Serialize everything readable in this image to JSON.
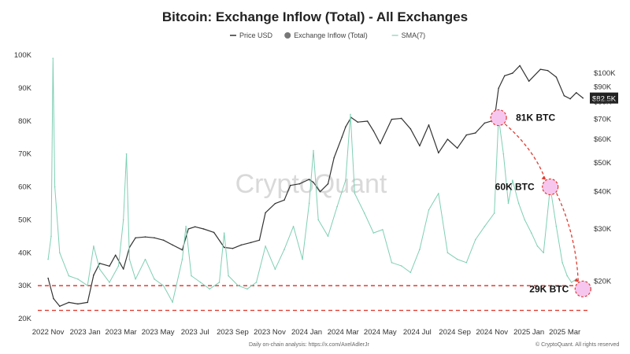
{
  "chart_data": {
    "type": "line",
    "title": "Bitcoin: Exchange Inflow (Total) - All Exchanges",
    "legend": [
      {
        "name": "Price USD",
        "color": "#333333",
        "marker": "line"
      },
      {
        "name": "Exchange Inflow (Total)",
        "color": "#777777",
        "marker": "dot"
      },
      {
        "name": "SMA(7)",
        "color": "#9fd8c4",
        "marker": "line"
      }
    ],
    "x_tick_labels": [
      "2022 Nov",
      "2023 Jan",
      "2023 Mar",
      "2023 May",
      "2023 Jul",
      "2023 Sep",
      "2023 Nov",
      "2024 Jan",
      "2024 Mar",
      "2024 May",
      "2024 Jul",
      "2024 Sep",
      "2024 Nov",
      "2025 Jan",
      "2025 Mar"
    ],
    "left_axis": {
      "ticks": [
        "100K",
        "90K",
        "80K",
        "70K",
        "60K",
        "50K",
        "40K",
        "30K",
        "20K"
      ],
      "ylim": [
        20000,
        100000
      ]
    },
    "right_axis": {
      "ticks": [
        "$100K",
        "$90K",
        "$80K",
        "$70K",
        "$60K",
        "$50K",
        "$40K",
        "$30K",
        "$20K"
      ],
      "log": true,
      "ylim": [
        15000,
        115000
      ]
    },
    "last_price_label": "$82.5K",
    "watermark": "CryptoQuant",
    "series": [
      {
        "name": "Price USD",
        "axis": "right",
        "color": "#333333",
        "x": [
          "2022-11-01",
          "2022-11-10",
          "2022-11-20",
          "2022-12-05",
          "2022-12-20",
          "2023-01-05",
          "2023-01-15",
          "2023-01-25",
          "2023-02-10",
          "2023-02-20",
          "2023-03-05",
          "2023-03-15",
          "2023-03-25",
          "2023-04-10",
          "2023-04-25",
          "2023-05-10",
          "2023-05-25",
          "2023-06-10",
          "2023-06-20",
          "2023-07-01",
          "2023-07-15",
          "2023-08-01",
          "2023-08-18",
          "2023-09-01",
          "2023-09-15",
          "2023-10-01",
          "2023-10-15",
          "2023-10-25",
          "2023-11-10",
          "2023-11-25",
          "2023-12-05",
          "2023-12-20",
          "2024-01-05",
          "2024-01-12",
          "2024-01-23",
          "2024-02-05",
          "2024-02-15",
          "2024-02-28",
          "2024-03-05",
          "2024-03-14",
          "2024-03-25",
          "2024-04-10",
          "2024-04-20",
          "2024-05-01",
          "2024-05-20",
          "2024-06-05",
          "2024-06-20",
          "2024-07-05",
          "2024-07-20",
          "2024-08-05",
          "2024-08-20",
          "2024-09-05",
          "2024-09-20",
          "2024-10-05",
          "2024-10-20",
          "2024-11-05",
          "2024-11-12",
          "2024-11-22",
          "2024-12-05",
          "2024-12-17",
          "2025-01-01",
          "2025-01-20",
          "2025-02-01",
          "2025-02-15",
          "2025-02-28",
          "2025-03-10",
          "2025-03-20",
          "2025-03-31"
        ],
        "values": [
          20500,
          17500,
          16500,
          17000,
          16800,
          17000,
          21000,
          23000,
          22500,
          24500,
          22000,
          26000,
          28000,
          28200,
          28000,
          27500,
          26500,
          25500,
          30000,
          30500,
          30000,
          29200,
          26000,
          25800,
          26500,
          27000,
          27500,
          34000,
          36500,
          37500,
          42000,
          42500,
          44000,
          43000,
          40000,
          42500,
          52000,
          61000,
          66000,
          71000,
          68500,
          69000,
          64000,
          58000,
          70000,
          70500,
          65000,
          57000,
          67000,
          54000,
          60000,
          56000,
          62000,
          63000,
          68000,
          69500,
          89000,
          98000,
          100000,
          106000,
          94000,
          103000,
          102000,
          97000,
          84000,
          82000,
          86000,
          82500
        ]
      },
      {
        "name": "Exchange Inflow (Total)",
        "axis": "left",
        "color": "#7fcfb4",
        "x": [
          "2022-11-01",
          "2022-11-06",
          "2022-11-09",
          "2022-11-12",
          "2022-11-20",
          "2022-12-05",
          "2022-12-20",
          "2023-01-05",
          "2023-01-15",
          "2023-01-25",
          "2023-02-10",
          "2023-02-25",
          "2023-03-05",
          "2023-03-10",
          "2023-03-15",
          "2023-03-25",
          "2023-04-10",
          "2023-04-25",
          "2023-05-10",
          "2023-05-25",
          "2023-06-10",
          "2023-06-16",
          "2023-06-25",
          "2023-07-10",
          "2023-07-25",
          "2023-08-10",
          "2023-08-18",
          "2023-08-25",
          "2023-09-10",
          "2023-09-25",
          "2023-10-10",
          "2023-10-25",
          "2023-11-10",
          "2023-11-25",
          "2023-12-10",
          "2023-12-25",
          "2024-01-05",
          "2024-01-12",
          "2024-01-20",
          "2024-02-05",
          "2024-02-20",
          "2024-03-05",
          "2024-03-13",
          "2024-03-20",
          "2024-04-05",
          "2024-04-20",
          "2024-05-05",
          "2024-05-20",
          "2024-06-05",
          "2024-06-20",
          "2024-07-05",
          "2024-07-20",
          "2024-08-05",
          "2024-08-20",
          "2024-09-05",
          "2024-09-20",
          "2024-10-05",
          "2024-10-20",
          "2024-11-05",
          "2024-11-12",
          "2024-11-20",
          "2024-11-28",
          "2024-12-05",
          "2024-12-15",
          "2024-12-25",
          "2025-01-05",
          "2025-01-15",
          "2025-01-25",
          "2025-02-05",
          "2025-02-15",
          "2025-02-25",
          "2025-03-05",
          "2025-03-12",
          "2025-03-20",
          "2025-03-31"
        ],
        "values": [
          38000,
          45000,
          99000,
          60000,
          40000,
          33000,
          32000,
          30000,
          42000,
          35000,
          31000,
          36000,
          50000,
          70000,
          38000,
          32000,
          38000,
          32000,
          30000,
          25000,
          38000,
          48000,
          33000,
          31000,
          29000,
          31000,
          46000,
          33000,
          30000,
          29000,
          31000,
          42000,
          35000,
          41000,
          48000,
          38000,
          55000,
          71000,
          50000,
          45000,
          54000,
          62000,
          82000,
          58000,
          52000,
          46000,
          47000,
          37000,
          36000,
          34000,
          41000,
          53000,
          58000,
          40000,
          38000,
          37000,
          44000,
          48000,
          52000,
          81000,
          70000,
          55000,
          62000,
          55000,
          50000,
          46000,
          42000,
          40000,
          60000,
          48000,
          37000,
          33000,
          31000,
          32000,
          29000
        ]
      }
    ],
    "annotations": [
      {
        "label": "81K BTC",
        "x": "2024-11-12",
        "y": 81000
      },
      {
        "label": "60K BTC",
        "x": "2025-02-05",
        "y": 60000
      },
      {
        "label": "29K BTC",
        "x": "2025-03-31",
        "y": 29000
      }
    ],
    "reference_lines": [
      {
        "y": 30000,
        "color": "#e03c31",
        "style": "dashed"
      },
      {
        "y": 22500,
        "color": "#e03c31",
        "style": "dashed"
      }
    ],
    "footer_left": "Daily on-chain analysis: https://x.com/AxelAdlerJr",
    "footer_right": "© CryptoQuant. All rights reserved",
    "grid": false
  }
}
